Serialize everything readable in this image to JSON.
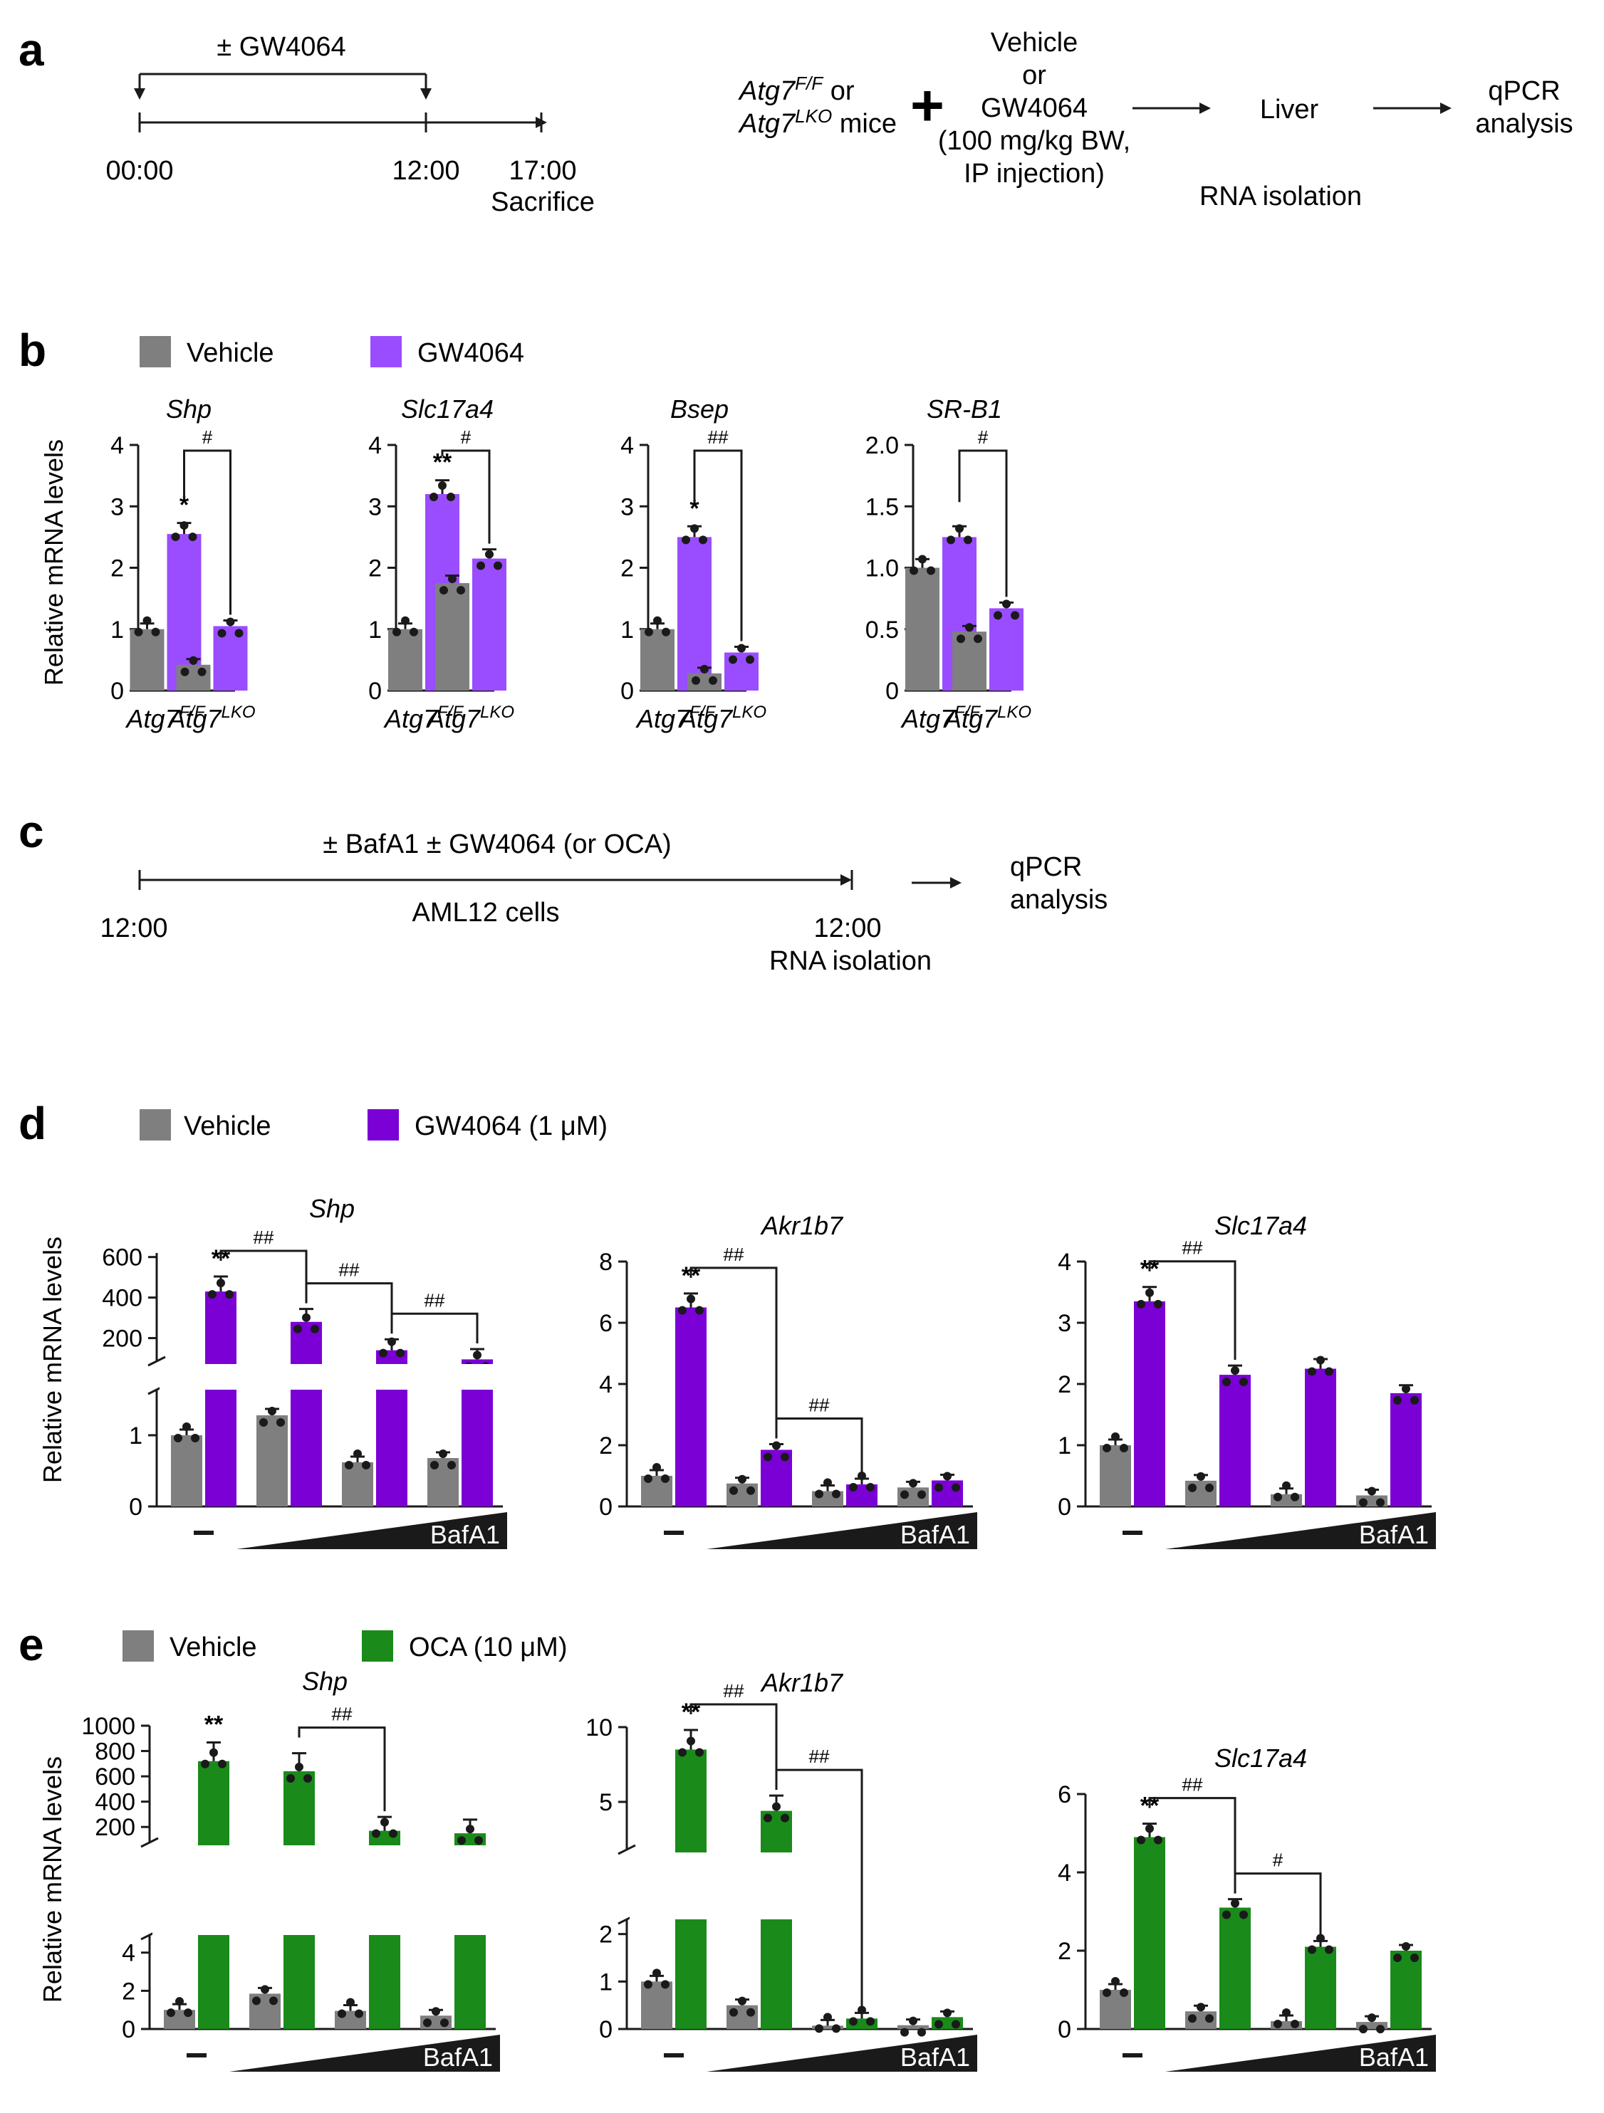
{
  "colors": {
    "vehicle": "#7f7f7f",
    "gw": "#9a4dff",
    "gw_d": "#7a00d6",
    "oca": "#1a8a1a",
    "ink": "#1a1a1a"
  },
  "panel_a": {
    "label": "a",
    "treatment": "± GW4064",
    "t0": "00:00",
    "t12": "12:00",
    "t17": "17:00",
    "sacrifice": "Sacrifice",
    "mice_line1_gene": "Atg7",
    "mice_line1_sup": "F/F",
    "mice_line1_rest": " or",
    "mice_line2_gene": "Atg7",
    "mice_line2_sup": "LKO",
    "mice_line2_rest": " mice",
    "plus": "+",
    "treat_lines": [
      "Vehicle",
      "or",
      "GW4064",
      "(100 mg/kg BW,",
      "IP injection)"
    ],
    "liver": "Liver",
    "rna": "RNA isolation",
    "qpcr_lines": [
      "qPCR",
      "analysis"
    ]
  },
  "panel_b": {
    "label": "b",
    "legend": [
      "Vehicle",
      "GW4064"
    ],
    "ylabel": "Relative mRNA levels",
    "group_gene": "Atg7",
    "group_sups": [
      "F/F",
      "LKO"
    ]
  },
  "panel_c": {
    "label": "c",
    "treatment": "± BafA1 ± GW4064 (or OCA)",
    "start": "12:00",
    "cells": "AML12 cells",
    "end": "12:00",
    "rna": "RNA isolation",
    "qpcr_lines": [
      "qPCR",
      "analysis"
    ]
  },
  "panel_d": {
    "label": "d",
    "legend": [
      "Vehicle",
      "GW4064 (1 μM)"
    ],
    "ylabel": "Relative mRNA levels"
  },
  "panel_e": {
    "label": "e",
    "legend": [
      "Vehicle",
      "OCA (10 μM)"
    ],
    "ylabel": "Relative mRNA levels"
  },
  "bafa1_label": "BafA1",
  "minus_label": "−",
  "chart_data": [
    {
      "panel": "b",
      "type": "bar",
      "title": "Shp",
      "categories": [
        "Atg7F/F",
        "Atg7LKO"
      ],
      "ylim": [
        0,
        4
      ],
      "yticks": [
        "0",
        "1",
        "2",
        "3",
        "4"
      ],
      "series": [
        {
          "name": "Vehicle",
          "values": [
            1.0,
            0.42
          ]
        },
        {
          "name": "GW4064",
          "values": [
            2.55,
            1.05
          ]
        }
      ],
      "annotations": [
        {
          "text": "*",
          "target": "GW4064, Atg7F/F"
        },
        {
          "text": "#",
          "comparison": "Atg7F/F GW4064 vs Atg7LKO GW4064"
        }
      ]
    },
    {
      "panel": "b",
      "type": "bar",
      "title": "Slc17a4",
      "categories": [
        "Atg7F/F",
        "Atg7LKO"
      ],
      "ylim": [
        0,
        4
      ],
      "yticks": [
        "0",
        "1",
        "2",
        "3",
        "4"
      ],
      "series": [
        {
          "name": "Vehicle",
          "values": [
            1.0,
            1.75
          ]
        },
        {
          "name": "GW4064",
          "values": [
            3.2,
            2.15
          ]
        }
      ],
      "annotations": [
        {
          "text": "**",
          "target": "GW4064, Atg7F/F"
        },
        {
          "text": "#",
          "comparison": "Atg7F/F GW4064 vs Atg7LKO GW4064"
        }
      ]
    },
    {
      "panel": "b",
      "type": "bar",
      "title": "Bsep",
      "categories": [
        "Atg7F/F",
        "Atg7LKO"
      ],
      "ylim": [
        0,
        4
      ],
      "yticks": [
        "0",
        "1",
        "2",
        "3",
        "4"
      ],
      "series": [
        {
          "name": "Vehicle",
          "values": [
            1.0,
            0.28
          ]
        },
        {
          "name": "GW4064",
          "values": [
            2.5,
            0.62
          ]
        }
      ],
      "annotations": [
        {
          "text": "*",
          "target": "GW4064, Atg7F/F"
        },
        {
          "text": "##",
          "comparison": "Atg7F/F GW4064 vs Atg7LKO GW4064"
        }
      ]
    },
    {
      "panel": "b",
      "type": "bar",
      "title": "SR-B1",
      "categories": [
        "Atg7F/F",
        "Atg7LKO"
      ],
      "ylim": [
        0,
        2.0
      ],
      "yticks": [
        "0",
        "0.5",
        "1.0",
        "1.5",
        "2.0"
      ],
      "series": [
        {
          "name": "Vehicle",
          "values": [
            1.0,
            0.48
          ]
        },
        {
          "name": "GW4064",
          "values": [
            1.25,
            0.67
          ]
        }
      ],
      "annotations": [
        {
          "text": "#",
          "comparison": "Atg7F/F GW4064 vs Atg7LKO GW4064"
        }
      ]
    },
    {
      "panel": "d",
      "type": "bar",
      "title": "Shp",
      "categories": [
        "−",
        "BafA1 low",
        "BafA1 mid",
        "BafA1 high"
      ],
      "broken_axis": true,
      "yticks_lower": [
        "0",
        "1"
      ],
      "yticks_upper": [
        "200",
        "400",
        "600"
      ],
      "series": [
        {
          "name": "Vehicle",
          "values": [
            1.0,
            1.28,
            0.62,
            0.68
          ]
        },
        {
          "name": "GW4064 (1 μM)",
          "values": [
            430,
            280,
            140,
            95
          ]
        }
      ],
      "annotations": [
        {
          "text": "**",
          "target": "GW4064, −"
        },
        {
          "text": "##",
          "comparison": "− vs low"
        },
        {
          "text": "##",
          "comparison": "low vs mid"
        },
        {
          "text": "##",
          "comparison": "mid vs high"
        }
      ]
    },
    {
      "panel": "d",
      "type": "bar",
      "title": "Akr1b7",
      "categories": [
        "−",
        "BafA1 low",
        "BafA1 mid",
        "BafA1 high"
      ],
      "ylim": [
        0,
        8
      ],
      "yticks": [
        "0",
        "2",
        "4",
        "6",
        "8"
      ],
      "series": [
        {
          "name": "Vehicle",
          "values": [
            1.0,
            0.75,
            0.5,
            0.62
          ]
        },
        {
          "name": "GW4064 (1 μM)",
          "values": [
            6.5,
            1.85,
            0.72,
            0.85
          ]
        }
      ],
      "annotations": [
        {
          "text": "**",
          "target": "GW4064, −"
        },
        {
          "text": "##",
          "comparison": "− vs low"
        },
        {
          "text": "##",
          "comparison": "low vs mid"
        }
      ]
    },
    {
      "panel": "d",
      "type": "bar",
      "title": "Slc17a4",
      "categories": [
        "−",
        "BafA1 low",
        "BafA1 mid",
        "BafA1 high"
      ],
      "ylim": [
        0,
        4
      ],
      "yticks": [
        "0",
        "1",
        "2",
        "3",
        "4"
      ],
      "series": [
        {
          "name": "Vehicle",
          "values": [
            1.0,
            0.42,
            0.2,
            0.18
          ]
        },
        {
          "name": "GW4064 (1 μM)",
          "values": [
            3.35,
            2.15,
            2.25,
            1.85
          ]
        }
      ],
      "annotations": [
        {
          "text": "**",
          "target": "GW4064, −"
        },
        {
          "text": "##",
          "comparison": "− vs low"
        }
      ]
    },
    {
      "panel": "e",
      "type": "bar",
      "title": "Shp",
      "categories": [
        "−",
        "BafA1 low",
        "BafA1 mid",
        "BafA1 high"
      ],
      "broken_axis": true,
      "yticks_lower": [
        "0",
        "2",
        "4"
      ],
      "yticks_upper": [
        "200",
        "400",
        "600",
        "800",
        "1000"
      ],
      "series": [
        {
          "name": "Vehicle",
          "values": [
            1.0,
            1.85,
            0.95,
            0.7
          ]
        },
        {
          "name": "OCA (10 μM)",
          "values": [
            720,
            640,
            170,
            150
          ]
        }
      ],
      "annotations": [
        {
          "text": "**",
          "target": "OCA, −"
        },
        {
          "text": "##",
          "comparison": "low vs mid"
        }
      ]
    },
    {
      "panel": "e",
      "type": "bar",
      "title": "Akr1b7",
      "categories": [
        "−",
        "BafA1 low",
        "BafA1 mid",
        "BafA1 high"
      ],
      "broken_axis": true,
      "yticks_lower": [
        "0",
        "1",
        "2"
      ],
      "yticks_upper": [
        "5",
        "10"
      ],
      "series": [
        {
          "name": "Vehicle",
          "values": [
            1.0,
            0.5,
            0.07,
            0.08
          ]
        },
        {
          "name": "OCA (10 μM)",
          "values": [
            8.5,
            4.4,
            0.22,
            0.25
          ]
        }
      ],
      "annotations": [
        {
          "text": "**",
          "target": "OCA, −"
        },
        {
          "text": "##",
          "comparison": "− vs low"
        },
        {
          "text": "##",
          "comparison": "low vs mid"
        }
      ]
    },
    {
      "panel": "e",
      "type": "bar",
      "title": "Slc17a4",
      "categories": [
        "−",
        "BafA1 low",
        "BafA1 mid",
        "BafA1 high"
      ],
      "ylim": [
        0,
        6
      ],
      "yticks": [
        "0",
        "2",
        "4",
        "6"
      ],
      "series": [
        {
          "name": "Vehicle",
          "values": [
            1.0,
            0.45,
            0.2,
            0.18
          ]
        },
        {
          "name": "OCA (10 μM)",
          "values": [
            4.9,
            3.1,
            2.1,
            2.0
          ]
        }
      ],
      "annotations": [
        {
          "text": "**",
          "target": "OCA, −"
        },
        {
          "text": "##",
          "comparison": "− vs low"
        },
        {
          "text": "#",
          "comparison": "low vs mid"
        }
      ]
    }
  ]
}
